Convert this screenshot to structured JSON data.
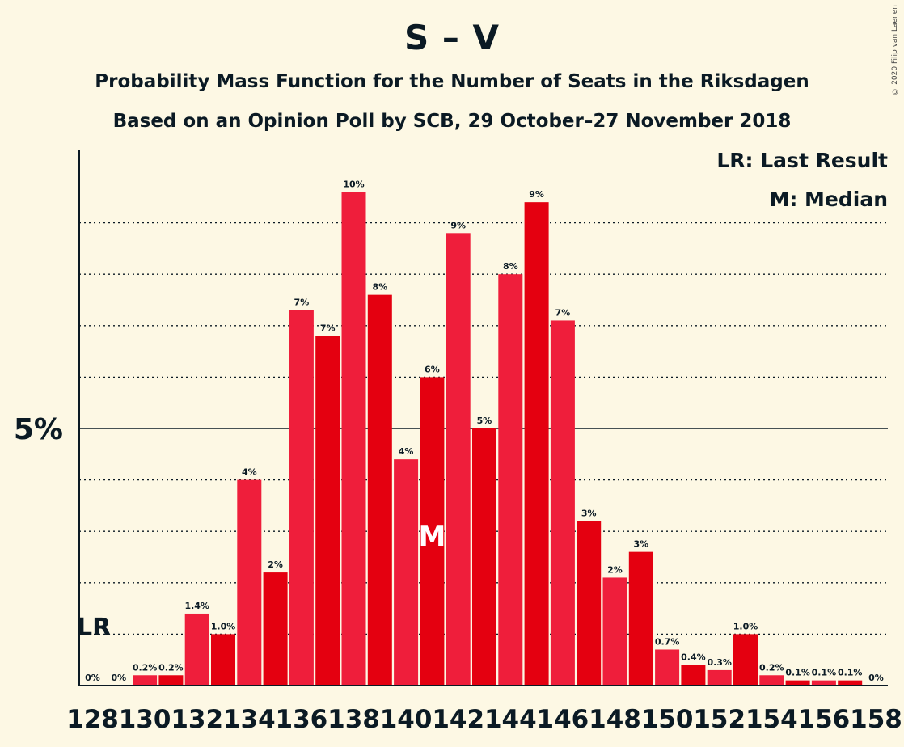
{
  "header": {
    "title": "S – V",
    "subtitle1": "Probability Mass Function for the Number of Seats in the Riksdagen",
    "subtitle2": "Based on an Opinion Poll by SCB, 29 October–27 November 2018",
    "copyright": "© 2020 Filip van Laenen"
  },
  "legend": {
    "lr": "LR: Last Result",
    "median": "M: Median"
  },
  "colors": {
    "background": "#fdf8e4",
    "bar_light": "#ef1e3b",
    "bar_dark": "#e40010",
    "text": "#0b1a24"
  },
  "chart_data": {
    "type": "bar",
    "x": [
      128,
      129,
      130,
      131,
      132,
      133,
      134,
      135,
      136,
      137,
      138,
      139,
      140,
      141,
      142,
      143,
      144,
      145,
      146,
      147,
      148,
      149,
      150,
      151,
      152,
      153,
      154,
      155,
      156,
      157,
      158
    ],
    "values": [
      0,
      0,
      0.2,
      0.2,
      1.4,
      1.0,
      4.0,
      2.2,
      7.3,
      6.8,
      9.6,
      7.6,
      4.4,
      6.0,
      8.8,
      5.0,
      8.0,
      9.4,
      7.1,
      3.2,
      2.1,
      2.6,
      0.7,
      0.4,
      0.3,
      1.0,
      0.2,
      0.1,
      0.1,
      0.1,
      0
    ],
    "data_labels": [
      "0%",
      "0%",
      "0.2%",
      "0.2%",
      "1.4%",
      "1.0%",
      "4%",
      "2%",
      "7%",
      "7%",
      "10%",
      "8%",
      "4%",
      "6%",
      "9%",
      "5%",
      "8%",
      "9%",
      "7%",
      "3%",
      "2%",
      "3%",
      "0.7%",
      "0.4%",
      "0.3%",
      "1.0%",
      "0.2%",
      "0.1%",
      "0.1%",
      "0.1%",
      "0%"
    ],
    "x_tick_labels": [
      "128",
      "130",
      "132",
      "134",
      "136",
      "138",
      "140",
      "142",
      "144",
      "146",
      "148",
      "150",
      "152",
      "154",
      "156",
      "158"
    ],
    "y_tick_label": "5%",
    "y_tick_value": 5,
    "ylim": [
      0,
      10.5
    ],
    "gridlines": [
      1,
      2,
      3,
      4,
      6,
      7,
      8,
      9
    ],
    "last_result_seat": 128,
    "last_result_label": "LR",
    "median_seat": 141,
    "median_label": "M"
  }
}
